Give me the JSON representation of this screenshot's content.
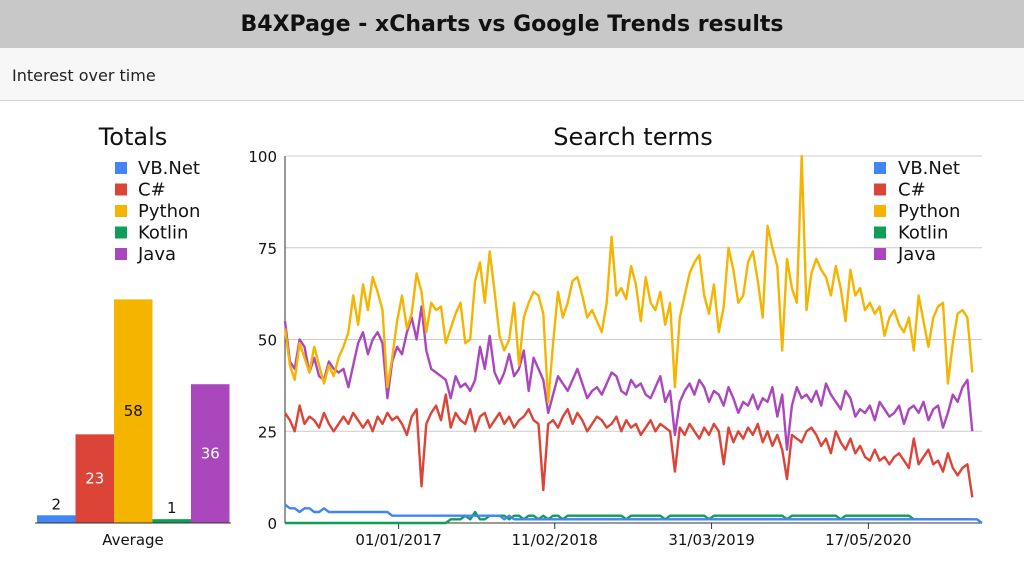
{
  "window": {
    "title": "B4XPage - xCharts vs Google Trends results"
  },
  "header": {
    "label": "Interest over time"
  },
  "colors": {
    "vbnet": "#4285f4",
    "csharp": "#db4437",
    "python": "#f4b400",
    "kotlin": "#0f9d58",
    "java": "#ab47bc",
    "grid": "#cccccc",
    "axis": "#333333"
  },
  "chart_data": [
    {
      "type": "bar",
      "title": "Totals",
      "categories": [
        "Average"
      ],
      "series": [
        {
          "name": "VB.Net",
          "values": [
            2
          ],
          "color": "#4285f4"
        },
        {
          "name": "C#",
          "values": [
            23
          ],
          "color": "#db4437"
        },
        {
          "name": "Python",
          "values": [
            58
          ],
          "color": "#f4b400"
        },
        {
          "name": "Kotlin",
          "values": [
            1
          ],
          "color": "#0f9d58"
        },
        {
          "name": "Java",
          "values": [
            36
          ],
          "color": "#ab47bc"
        }
      ],
      "legend_position": "top",
      "show_value_labels": true
    },
    {
      "type": "line",
      "title": "Search terms",
      "x_tick_labels": [
        "01/01/2017",
        "11/02/2018",
        "31/03/2019",
        "17/05/2020"
      ],
      "ylim": [
        0,
        100
      ],
      "y_ticks": [
        0,
        25,
        50,
        75,
        100
      ],
      "grid": true,
      "legend_position": "top-right",
      "series": [
        {
          "name": "VB.Net",
          "color": "#4285f4",
          "values": [
            5,
            4,
            4,
            3,
            4,
            4,
            3,
            3,
            4,
            3,
            3,
            3,
            3,
            3,
            3,
            3,
            3,
            3,
            3,
            3,
            3,
            3,
            2,
            2,
            2,
            2,
            2,
            2,
            2,
            2,
            2,
            2,
            2,
            2,
            2,
            2,
            2,
            2,
            2,
            2,
            2,
            2,
            2,
            2,
            2,
            1,
            2,
            1,
            1,
            1,
            1,
            1,
            1,
            1,
            1,
            1,
            1,
            1,
            1,
            1,
            1,
            1,
            1,
            1,
            1,
            1,
            1,
            1,
            1,
            1,
            1,
            1,
            1,
            1,
            1,
            1,
            1,
            1,
            1,
            1,
            1,
            1,
            1,
            1,
            1,
            1,
            1,
            1,
            1,
            1,
            1,
            1,
            1,
            1,
            1,
            1,
            1,
            1,
            1,
            1,
            1,
            1,
            1,
            1,
            1,
            1,
            1,
            1,
            1,
            1,
            1,
            1,
            1,
            1,
            1,
            1,
            1,
            1,
            1,
            1,
            1,
            1,
            1,
            1,
            1,
            1,
            1,
            1,
            1,
            1,
            1,
            1,
            1,
            1,
            1,
            1,
            1,
            1,
            1,
            1,
            1,
            1,
            1,
            0
          ]
        },
        {
          "name": "C#",
          "color": "#db4437",
          "values": [
            30,
            28,
            25,
            32,
            27,
            29,
            28,
            26,
            30,
            27,
            25,
            27,
            29,
            27,
            30,
            28,
            26,
            28,
            25,
            29,
            27,
            30,
            28,
            29,
            27,
            24,
            29,
            31,
            10,
            27,
            30,
            32,
            28,
            35,
            26,
            30,
            28,
            27,
            31,
            25,
            29,
            30,
            26,
            28,
            30,
            27,
            29,
            26,
            28,
            29,
            31,
            28,
            27,
            9,
            27,
            28,
            26,
            29,
            31,
            27,
            30,
            28,
            25,
            27,
            29,
            28,
            26,
            27,
            29,
            25,
            28,
            26,
            27,
            24,
            26,
            28,
            25,
            27,
            26,
            25,
            14,
            26,
            24,
            27,
            25,
            23,
            26,
            24,
            27,
            25,
            16,
            26,
            22,
            25,
            23,
            26,
            24,
            27,
            22,
            25,
            21,
            24,
            20,
            12,
            24,
            23,
            22,
            25,
            26,
            24,
            21,
            23,
            19,
            25,
            22,
            20,
            23,
            19,
            21,
            18,
            17,
            20,
            17,
            18,
            16,
            18,
            19,
            17,
            15,
            23,
            16,
            18,
            20,
            16,
            17,
            14,
            19,
            15,
            13,
            15,
            16,
            7
          ]
        },
        {
          "name": "Python",
          "color": "#f4b400",
          "values": [
            53,
            43,
            39,
            49,
            45,
            41,
            48,
            43,
            38,
            43,
            40,
            45,
            48,
            52,
            62,
            54,
            65,
            58,
            67,
            63,
            58,
            37,
            45,
            55,
            62,
            53,
            57,
            68,
            63,
            52,
            60,
            58,
            59,
            49,
            53,
            57,
            60,
            49,
            50,
            66,
            71,
            60,
            74,
            63,
            51,
            47,
            50,
            60,
            43,
            56,
            60,
            63,
            62,
            57,
            33,
            49,
            63,
            56,
            60,
            66,
            67,
            62,
            56,
            58,
            55,
            52,
            60,
            78,
            62,
            64,
            61,
            70,
            65,
            55,
            67,
            60,
            58,
            63,
            54,
            60,
            37,
            56,
            62,
            68,
            71,
            73,
            62,
            57,
            65,
            52,
            59,
            75,
            69,
            60,
            62,
            71,
            74,
            66,
            56,
            81,
            75,
            70,
            47,
            72,
            64,
            60,
            100,
            58,
            68,
            72,
            69,
            67,
            62,
            70,
            64,
            55,
            69,
            62,
            64,
            58,
            60,
            57,
            59,
            51,
            56,
            58,
            54,
            52,
            56,
            47,
            62,
            55,
            48,
            56,
            59,
            60,
            38,
            49,
            57,
            58,
            56,
            41
          ]
        },
        {
          "name": "Kotlin",
          "color": "#0f9d58",
          "values": [
            0,
            0,
            0,
            0,
            0,
            0,
            0,
            0,
            0,
            0,
            0,
            0,
            0,
            0,
            0,
            0,
            0,
            0,
            0,
            0,
            0,
            0,
            0,
            0,
            0,
            0,
            0,
            0,
            0,
            0,
            0,
            0,
            0,
            0,
            1,
            1,
            1,
            2,
            1,
            3,
            1,
            1,
            2,
            2,
            2,
            2,
            1,
            2,
            2,
            1,
            2,
            2,
            1,
            2,
            1,
            2,
            2,
            1,
            2,
            2,
            2,
            2,
            2,
            2,
            2,
            2,
            2,
            2,
            2,
            2,
            1,
            2,
            2,
            2,
            2,
            2,
            2,
            2,
            1,
            2,
            2,
            2,
            2,
            2,
            2,
            2,
            2,
            1,
            2,
            2,
            2,
            2,
            2,
            2,
            2,
            2,
            2,
            2,
            2,
            2,
            2,
            2,
            2,
            1,
            2,
            2,
            2,
            2,
            2,
            2,
            2,
            2,
            2,
            2,
            1,
            2,
            2,
            2,
            2,
            2,
            2,
            2,
            2,
            2,
            2,
            2,
            2,
            2,
            2,
            1,
            1,
            1,
            1,
            1,
            1,
            1,
            1,
            1,
            1,
            1,
            1,
            1
          ]
        },
        {
          "name": "Java",
          "color": "#ab47bc",
          "values": [
            55,
            44,
            42,
            50,
            48,
            41,
            45,
            40,
            39,
            44,
            42,
            41,
            42,
            37,
            43,
            49,
            52,
            46,
            50,
            52,
            49,
            34,
            44,
            48,
            46,
            52,
            56,
            50,
            59,
            47,
            42,
            41,
            40,
            39,
            34,
            40,
            37,
            38,
            36,
            39,
            48,
            42,
            51,
            41,
            38,
            41,
            46,
            40,
            42,
            47,
            36,
            45,
            42,
            39,
            30,
            35,
            40,
            38,
            36,
            39,
            42,
            38,
            34,
            36,
            37,
            35,
            38,
            41,
            40,
            36,
            35,
            39,
            37,
            38,
            35,
            34,
            37,
            40,
            33,
            36,
            24,
            33,
            36,
            38,
            35,
            39,
            37,
            33,
            36,
            35,
            32,
            37,
            34,
            30,
            33,
            32,
            35,
            31,
            34,
            33,
            37,
            29,
            35,
            20,
            32,
            37,
            34,
            35,
            33,
            36,
            32,
            38,
            35,
            33,
            31,
            36,
            34,
            29,
            31,
            30,
            32,
            28,
            33,
            31,
            29,
            30,
            32,
            27,
            31,
            32,
            30,
            33,
            28,
            31,
            32,
            26,
            30,
            35,
            33,
            37,
            39,
            25
          ]
        }
      ]
    }
  ]
}
